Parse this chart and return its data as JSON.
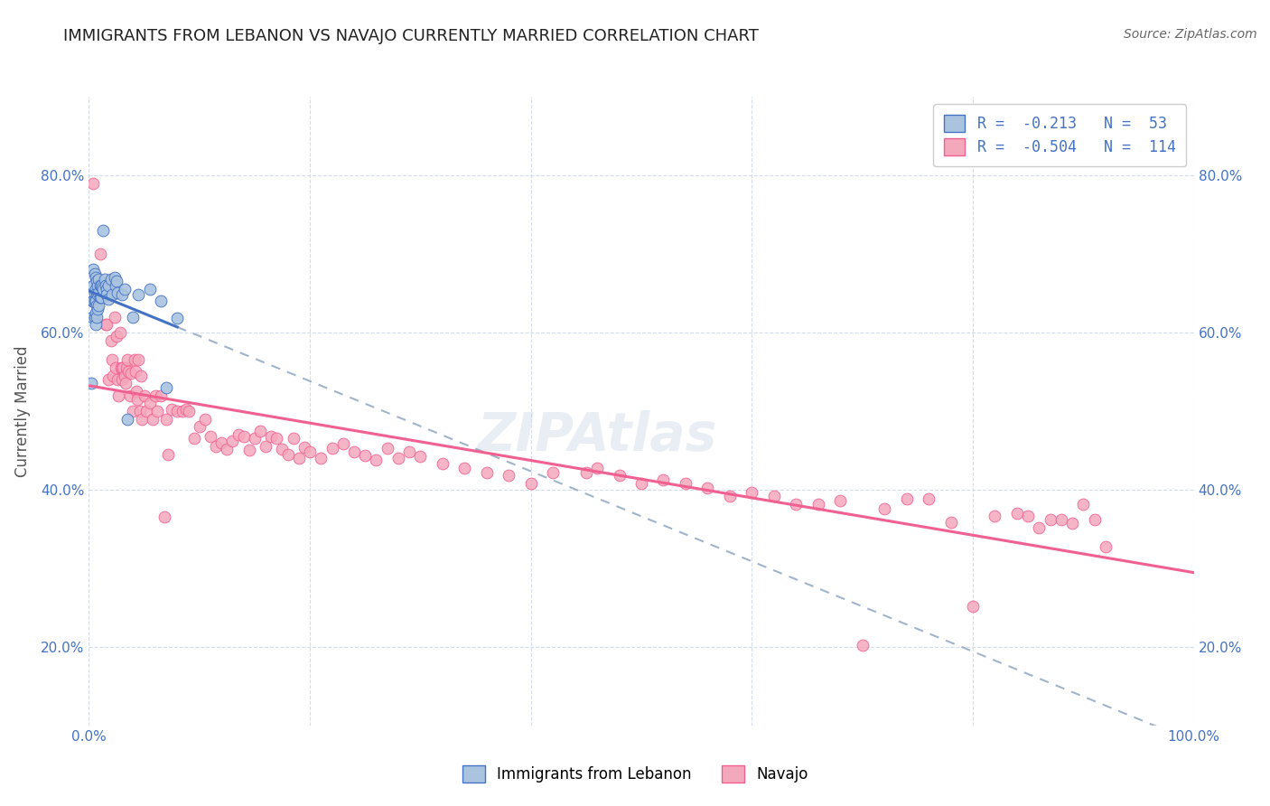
{
  "title": "IMMIGRANTS FROM LEBANON VS NAVAJO CURRENTLY MARRIED CORRELATION CHART",
  "source": "Source: ZipAtlas.com",
  "ylabel": "Currently Married",
  "legend_blue_label": "Immigrants from Lebanon",
  "legend_pink_label": "Navajo",
  "legend_blue_r": "R =  -0.213",
  "legend_blue_n": "N =  53",
  "legend_pink_r": "R =  -0.504",
  "legend_pink_n": "N =  114",
  "blue_color": "#aac4e0",
  "pink_color": "#f4a8bc",
  "blue_line_color": "#4472c4",
  "pink_line_color": "#f06090",
  "dashed_line_color": "#a0b4cc",
  "watermark": "ZIPAtlas",
  "blue_scatter": [
    [
      0.002,
      0.535
    ],
    [
      0.003,
      0.64
    ],
    [
      0.003,
      0.62
    ],
    [
      0.004,
      0.68
    ],
    [
      0.004,
      0.66
    ],
    [
      0.004,
      0.64
    ],
    [
      0.005,
      0.675
    ],
    [
      0.005,
      0.65
    ],
    [
      0.005,
      0.64
    ],
    [
      0.005,
      0.62
    ],
    [
      0.006,
      0.67
    ],
    [
      0.006,
      0.655
    ],
    [
      0.006,
      0.64
    ],
    [
      0.006,
      0.625
    ],
    [
      0.006,
      0.61
    ],
    [
      0.007,
      0.665
    ],
    [
      0.007,
      0.65
    ],
    [
      0.007,
      0.635
    ],
    [
      0.007,
      0.62
    ],
    [
      0.008,
      0.66
    ],
    [
      0.008,
      0.648
    ],
    [
      0.008,
      0.63
    ],
    [
      0.009,
      0.668
    ],
    [
      0.009,
      0.65
    ],
    [
      0.009,
      0.635
    ],
    [
      0.01,
      0.66
    ],
    [
      0.01,
      0.645
    ],
    [
      0.011,
      0.66
    ],
    [
      0.011,
      0.645
    ],
    [
      0.012,
      0.658
    ],
    [
      0.013,
      0.73
    ],
    [
      0.013,
      0.655
    ],
    [
      0.014,
      0.668
    ],
    [
      0.015,
      0.66
    ],
    [
      0.016,
      0.655
    ],
    [
      0.016,
      0.648
    ],
    [
      0.018,
      0.66
    ],
    [
      0.018,
      0.642
    ],
    [
      0.02,
      0.668
    ],
    [
      0.021,
      0.648
    ],
    [
      0.023,
      0.67
    ],
    [
      0.024,
      0.66
    ],
    [
      0.025,
      0.665
    ],
    [
      0.026,
      0.65
    ],
    [
      0.03,
      0.648
    ],
    [
      0.032,
      0.655
    ],
    [
      0.035,
      0.49
    ],
    [
      0.04,
      0.62
    ],
    [
      0.045,
      0.648
    ],
    [
      0.055,
      0.655
    ],
    [
      0.065,
      0.64
    ],
    [
      0.07,
      0.53
    ],
    [
      0.08,
      0.618
    ]
  ],
  "pink_scatter": [
    [
      0.004,
      0.79
    ],
    [
      0.01,
      0.7
    ],
    [
      0.015,
      0.61
    ],
    [
      0.016,
      0.61
    ],
    [
      0.018,
      0.54
    ],
    [
      0.02,
      0.59
    ],
    [
      0.021,
      0.565
    ],
    [
      0.022,
      0.545
    ],
    [
      0.023,
      0.62
    ],
    [
      0.024,
      0.555
    ],
    [
      0.025,
      0.595
    ],
    [
      0.026,
      0.54
    ],
    [
      0.027,
      0.52
    ],
    [
      0.028,
      0.6
    ],
    [
      0.029,
      0.555
    ],
    [
      0.03,
      0.555
    ],
    [
      0.03,
      0.54
    ],
    [
      0.031,
      0.555
    ],
    [
      0.032,
      0.545
    ],
    [
      0.033,
      0.535
    ],
    [
      0.034,
      0.555
    ],
    [
      0.035,
      0.565
    ],
    [
      0.036,
      0.55
    ],
    [
      0.037,
      0.52
    ],
    [
      0.038,
      0.548
    ],
    [
      0.04,
      0.5
    ],
    [
      0.041,
      0.565
    ],
    [
      0.042,
      0.55
    ],
    [
      0.043,
      0.525
    ],
    [
      0.044,
      0.515
    ],
    [
      0.045,
      0.565
    ],
    [
      0.046,
      0.5
    ],
    [
      0.047,
      0.545
    ],
    [
      0.048,
      0.49
    ],
    [
      0.05,
      0.52
    ],
    [
      0.052,
      0.5
    ],
    [
      0.055,
      0.51
    ],
    [
      0.058,
      0.49
    ],
    [
      0.06,
      0.52
    ],
    [
      0.062,
      0.5
    ],
    [
      0.065,
      0.52
    ],
    [
      0.068,
      0.365
    ],
    [
      0.07,
      0.49
    ],
    [
      0.072,
      0.445
    ],
    [
      0.075,
      0.502
    ],
    [
      0.08,
      0.5
    ],
    [
      0.085,
      0.5
    ],
    [
      0.088,
      0.502
    ],
    [
      0.09,
      0.5
    ],
    [
      0.095,
      0.465
    ],
    [
      0.1,
      0.48
    ],
    [
      0.105,
      0.49
    ],
    [
      0.11,
      0.468
    ],
    [
      0.115,
      0.455
    ],
    [
      0.12,
      0.46
    ],
    [
      0.125,
      0.452
    ],
    [
      0.13,
      0.462
    ],
    [
      0.135,
      0.47
    ],
    [
      0.14,
      0.468
    ],
    [
      0.145,
      0.45
    ],
    [
      0.15,
      0.465
    ],
    [
      0.155,
      0.475
    ],
    [
      0.16,
      0.455
    ],
    [
      0.165,
      0.468
    ],
    [
      0.17,
      0.465
    ],
    [
      0.175,
      0.452
    ],
    [
      0.18,
      0.445
    ],
    [
      0.185,
      0.465
    ],
    [
      0.19,
      0.44
    ],
    [
      0.195,
      0.454
    ],
    [
      0.2,
      0.448
    ],
    [
      0.21,
      0.44
    ],
    [
      0.22,
      0.453
    ],
    [
      0.23,
      0.458
    ],
    [
      0.24,
      0.448
    ],
    [
      0.25,
      0.443
    ],
    [
      0.26,
      0.438
    ],
    [
      0.27,
      0.453
    ],
    [
      0.28,
      0.44
    ],
    [
      0.29,
      0.448
    ],
    [
      0.3,
      0.442
    ],
    [
      0.32,
      0.433
    ],
    [
      0.34,
      0.428
    ],
    [
      0.36,
      0.422
    ],
    [
      0.38,
      0.418
    ],
    [
      0.4,
      0.408
    ],
    [
      0.42,
      0.422
    ],
    [
      0.45,
      0.422
    ],
    [
      0.46,
      0.428
    ],
    [
      0.48,
      0.418
    ],
    [
      0.5,
      0.408
    ],
    [
      0.52,
      0.412
    ],
    [
      0.54,
      0.408
    ],
    [
      0.56,
      0.402
    ],
    [
      0.58,
      0.392
    ],
    [
      0.6,
      0.396
    ],
    [
      0.62,
      0.392
    ],
    [
      0.64,
      0.382
    ],
    [
      0.66,
      0.382
    ],
    [
      0.68,
      0.386
    ],
    [
      0.7,
      0.202
    ],
    [
      0.72,
      0.376
    ],
    [
      0.74,
      0.388
    ],
    [
      0.76,
      0.388
    ],
    [
      0.78,
      0.358
    ],
    [
      0.8,
      0.252
    ],
    [
      0.82,
      0.366
    ],
    [
      0.84,
      0.37
    ],
    [
      0.85,
      0.367
    ],
    [
      0.86,
      0.352
    ],
    [
      0.87,
      0.362
    ],
    [
      0.88,
      0.362
    ],
    [
      0.89,
      0.357
    ],
    [
      0.9,
      0.382
    ],
    [
      0.91,
      0.362
    ],
    [
      0.92,
      0.328
    ]
  ],
  "xlim": [
    0.0,
    1.0
  ],
  "ylim": [
    0.1,
    0.9
  ],
  "yticks": [
    0.2,
    0.4,
    0.6,
    0.8
  ],
  "ytick_labels": [
    "20.0%",
    "40.0%",
    "60.0%",
    "80.0%"
  ],
  "xticks": [
    0.0,
    0.2,
    0.4,
    0.6,
    0.8,
    1.0
  ],
  "xtick_labels_left": "0.0%",
  "xtick_labels_right": "100.0%",
  "grid_color": "#d0d8e8",
  "background_color": "#ffffff",
  "title_fontsize": 13,
  "source_fontsize": 10
}
